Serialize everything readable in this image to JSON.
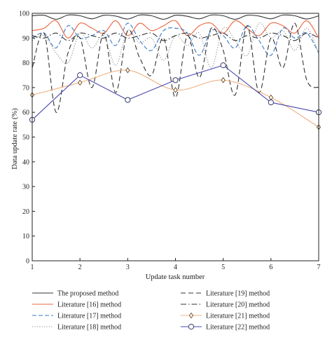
{
  "chart_data": {
    "type": "line",
    "xlabel": "Update task number",
    "ylabel": "Data update rate (%)",
    "xlim": [
      1,
      7
    ],
    "ylim": [
      0,
      100
    ],
    "xticks": [
      "1",
      "2",
      "3",
      "4",
      "5",
      "6",
      "7"
    ],
    "yticks": [
      "0",
      "10",
      "20",
      "30",
      "40",
      "50",
      "60",
      "70",
      "80",
      "90",
      "100"
    ],
    "grid": false,
    "legend_position": "bottom",
    "series": [
      {
        "name": "The proposed method",
        "color": "#333333",
        "dash": "solid",
        "marker": "none",
        "x": [
          1,
          1.25,
          1.5,
          1.75,
          2,
          2.25,
          2.5,
          2.75,
          3,
          3.25,
          3.5,
          3.75,
          4,
          4.25,
          4.5,
          4.75,
          5,
          5.25,
          5.5,
          5.75,
          6,
          6.25,
          6.5,
          6.75,
          7
        ],
        "y": [
          99,
          99.2,
          97.6,
          99.3,
          99,
          97.8,
          99.2,
          98.9,
          97.7,
          99.3,
          99,
          97.6,
          99.2,
          98.8,
          97.8,
          99.3,
          99,
          97.6,
          99.2,
          98.9,
          97.8,
          99.3,
          99,
          97.7,
          99
        ]
      },
      {
        "name": "Literature [16] method",
        "color": "#e8643c",
        "dash": "solid",
        "marker": "none",
        "x": [
          1,
          1.25,
          1.5,
          1.75,
          2,
          2.25,
          2.5,
          2.75,
          3,
          3.25,
          3.5,
          3.75,
          4,
          4.25,
          4.5,
          4.75,
          5,
          5.25,
          5.5,
          5.75,
          6,
          6.25,
          6.5,
          6.75,
          7
        ],
        "y": [
          93,
          94,
          97,
          90,
          96,
          94,
          92,
          97,
          91,
          96,
          93,
          95,
          97,
          91,
          95,
          96,
          92,
          97,
          94,
          91,
          96,
          95,
          92,
          97,
          90
        ]
      },
      {
        "name": "Literature [17] method",
        "color": "#3b78c4",
        "dash": "dashed",
        "marker": "none",
        "x": [
          1,
          1.25,
          1.5,
          1.75,
          2,
          2.25,
          2.5,
          2.75,
          3,
          3.25,
          3.5,
          3.75,
          4,
          4.25,
          4.5,
          4.75,
          5,
          5.25,
          5.5,
          5.75,
          6,
          6.25,
          6.5,
          6.75,
          7
        ],
        "y": [
          90,
          92,
          86,
          95,
          90,
          91,
          93,
          87,
          96,
          89,
          85,
          93,
          94,
          92,
          83,
          93,
          91,
          86,
          95,
          89,
          83,
          94,
          90,
          92,
          84
        ]
      },
      {
        "name": "Literature [18] method",
        "color": "#8a8a8a",
        "dash": "dotted",
        "marker": "none",
        "x": [
          1,
          1.25,
          1.5,
          1.75,
          2,
          2.25,
          2.5,
          2.75,
          3,
          3.25,
          3.5,
          3.75,
          4,
          4.25,
          4.5,
          4.75,
          5,
          5.25,
          5.5,
          5.75,
          6,
          6.25,
          6.5,
          6.75,
          7
        ],
        "y": [
          89,
          91,
          84,
          80,
          92,
          86,
          91,
          79,
          93,
          88,
          90,
          81,
          91,
          87,
          92,
          78,
          94,
          89,
          83,
          96,
          90,
          93,
          85,
          94,
          84
        ]
      },
      {
        "name": "Literature [19] method",
        "color": "#333333",
        "dash": "longdash",
        "marker": "none",
        "x": [
          1,
          1.25,
          1.5,
          1.75,
          2,
          2.25,
          2.5,
          2.75,
          3,
          3.25,
          3.5,
          3.75,
          4,
          4.25,
          4.5,
          4.75,
          5,
          5.25,
          5.5,
          5.75,
          6,
          6.25,
          6.5,
          6.75,
          7
        ],
        "y": [
          78,
          92,
          60,
          84,
          90,
          70,
          92,
          68,
          93,
          82,
          75,
          90,
          66,
          91,
          74,
          94,
          85,
          67,
          95,
          68,
          90,
          78,
          96,
          73,
          70
        ]
      },
      {
        "name": "Literature [20] method",
        "color": "#333333",
        "dash": "dashdot",
        "marker": "none",
        "x": [
          1,
          1.25,
          1.5,
          1.75,
          2,
          2.25,
          2.5,
          2.75,
          3,
          3.25,
          3.5,
          3.75,
          4,
          4.25,
          4.5,
          4.75,
          5,
          5.25,
          5.5,
          5.75,
          6,
          6.25,
          6.5,
          6.75,
          7
        ],
        "y": [
          91,
          90,
          92,
          89,
          92,
          91,
          90,
          92,
          90,
          91,
          92,
          89,
          91,
          92,
          90,
          91,
          92,
          89,
          91,
          90,
          92,
          91,
          89,
          92,
          90
        ]
      },
      {
        "name": "Literature [21] method",
        "color": "#f0b080",
        "dash": "solid",
        "marker": "diamond",
        "x": [
          1,
          2,
          3,
          4,
          5,
          6,
          7
        ],
        "y": [
          67,
          72,
          77,
          69,
          73,
          66,
          54
        ]
      },
      {
        "name": "Literature [22] method",
        "color": "#4a4ab0",
        "dash": "solid",
        "marker": "circle",
        "x": [
          1,
          2,
          3,
          4,
          5,
          6,
          7
        ],
        "y": [
          57,
          75,
          65,
          73,
          79,
          64,
          60
        ]
      }
    ]
  }
}
